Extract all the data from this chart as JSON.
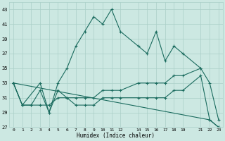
{
  "xlabel": "Humidex (Indice chaleur)",
  "xlim": [
    -0.5,
    23.5
  ],
  "ylim": [
    27,
    44
  ],
  "yticks": [
    27,
    29,
    31,
    33,
    35,
    37,
    39,
    41,
    43
  ],
  "xticks": [
    0,
    1,
    2,
    3,
    4,
    5,
    6,
    7,
    8,
    9,
    10,
    11,
    12,
    14,
    15,
    16,
    17,
    18,
    19,
    21,
    22,
    23
  ],
  "bg_color": "#cce8e2",
  "grid_color": "#aacfc8",
  "line_color": "#1a6b5e",
  "series": [
    {
      "x": [
        0,
        1,
        3,
        4,
        5,
        6,
        7,
        8,
        9,
        10,
        11,
        12,
        14,
        15,
        16,
        17,
        18,
        19,
        21
      ],
      "y": [
        33,
        30,
        33,
        29,
        33,
        35,
        38,
        40,
        42,
        41,
        43,
        40,
        38,
        37,
        40,
        36,
        38,
        37,
        35
      ]
    },
    {
      "x": [
        0,
        1,
        2,
        3,
        4,
        5,
        6,
        7,
        8,
        9,
        10,
        11,
        12,
        14,
        15,
        16,
        17,
        18,
        19,
        21,
        22,
        23
      ],
      "y": [
        33,
        30,
        30,
        30,
        30,
        31,
        31,
        31,
        31,
        31,
        32,
        32,
        32,
        33,
        33,
        33,
        33,
        34,
        34,
        35,
        33,
        28
      ]
    },
    {
      "x": [
        0,
        1,
        2,
        3,
        4,
        5,
        6,
        7,
        8,
        9,
        10,
        11,
        12,
        14,
        15,
        16,
        17,
        18,
        19,
        21,
        22,
        23
      ],
      "y": [
        33,
        30,
        30,
        32,
        29,
        32,
        31,
        30,
        30,
        30,
        31,
        31,
        31,
        31,
        31,
        31,
        31,
        32,
        32,
        34,
        28,
        27
      ]
    },
    {
      "x": [
        0,
        22,
        23
      ],
      "y": [
        33,
        28,
        27
      ]
    }
  ]
}
